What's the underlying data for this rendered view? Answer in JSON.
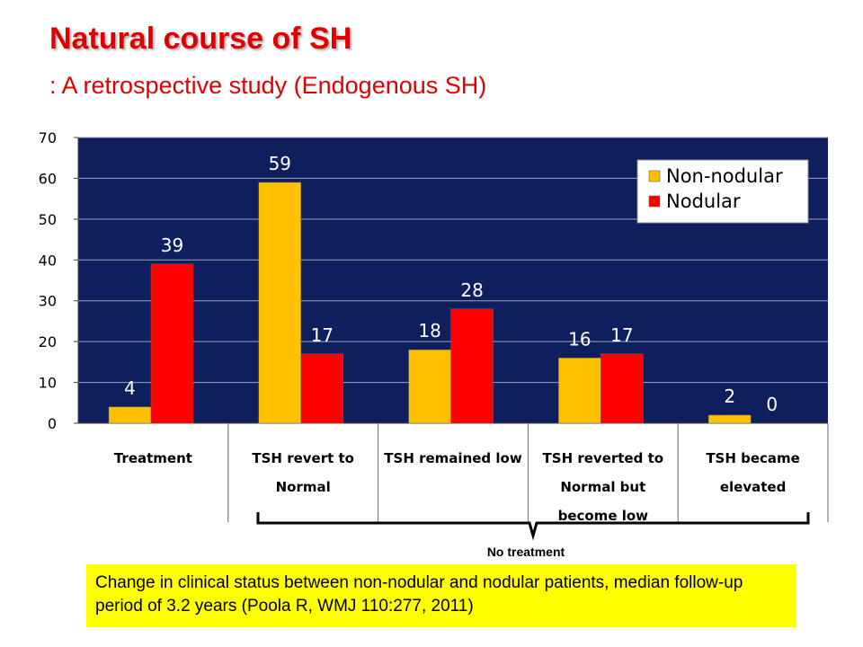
{
  "title": "Natural course of SH",
  "subtitle": ": A retrospective study (Endogenous SH)",
  "bracket_label": "No treatment",
  "caption": "Change in clinical status between non-nodular and nodular patients, median follow-up period of 3.2 years (Poola R, WMJ 110:277, 2011)",
  "colors": {
    "plot_background": "#0f1f5e",
    "non_nodular": "#ffc000",
    "nodular": "#ff0000",
    "caption_background": "#ffff00",
    "title": "#e00000"
  },
  "chart_data": {
    "type": "bar",
    "title": "",
    "xlabel": "",
    "ylabel": "",
    "ylim": [
      0,
      70
    ],
    "yticks": [
      0,
      10,
      20,
      30,
      40,
      50,
      60,
      70
    ],
    "grid": true,
    "legend_position": "top-right",
    "categories": [
      [
        "Treatment"
      ],
      [
        "TSH revert to",
        "Normal"
      ],
      [
        "TSH remained low"
      ],
      [
        "TSH reverted to",
        "Normal but",
        "become low"
      ],
      [
        "TSH became",
        "elevated"
      ]
    ],
    "series": [
      {
        "name": "Non-nodular",
        "values": [
          4,
          59,
          18,
          16,
          2
        ]
      },
      {
        "name": "Nodular",
        "values": [
          39,
          17,
          28,
          17,
          0
        ]
      }
    ]
  }
}
